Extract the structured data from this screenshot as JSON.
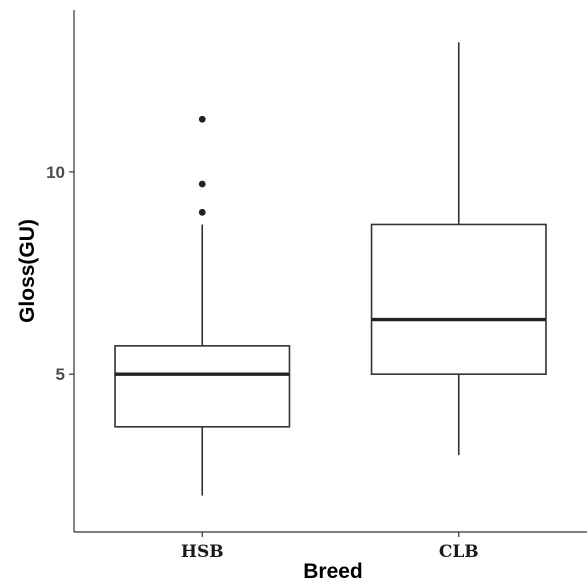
{
  "chart_data": {
    "type": "boxplot",
    "title": "",
    "xlabel": "Breed",
    "ylabel": "Gloss(GU)",
    "categories": [
      "HSB",
      "CLB"
    ],
    "yticks": [
      5,
      10
    ],
    "ylim": [
      1.1,
      14.0
    ],
    "grid": false,
    "legend": "none",
    "boxes": [
      {
        "category": "HSB",
        "whisker_low": 2.0,
        "q1": 3.7,
        "median": 5.0,
        "q3": 5.7,
        "whisker_high": 8.7,
        "outliers": [
          9.0,
          9.7,
          11.3
        ]
      },
      {
        "category": "CLB",
        "whisker_low": 3.0,
        "q1": 5.0,
        "median": 6.35,
        "q3": 8.7,
        "whisker_high": 13.2,
        "outliers": []
      }
    ]
  }
}
